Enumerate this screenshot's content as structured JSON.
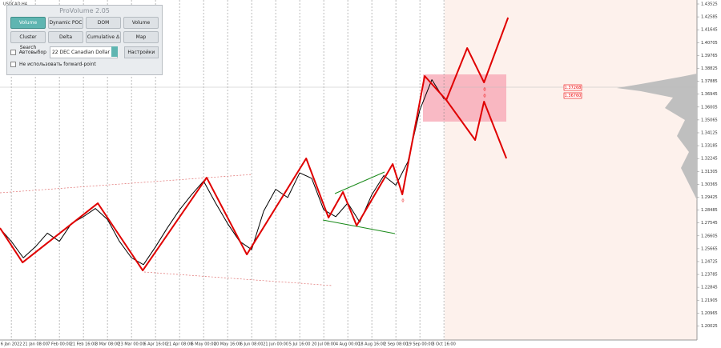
{
  "panel": {
    "title": "ProVolume 2.05",
    "buttons": [
      "Volume Profile",
      "Dynamic POC",
      "DOM",
      "Volume",
      "Cluster Search",
      "Delta",
      "Cumulative Δ",
      "Map"
    ],
    "auto_select": "Автовыбор",
    "instrument": "22 DEC Canadian Dollar",
    "settings": "Настройки",
    "forward_point": "Не использовать forward-point"
  },
  "chart_data": {
    "type": "line",
    "title": "USDCAD,H4",
    "categories": [
      "6 Jan 2022",
      "21 Jan 08:00",
      "7 Feb 00:00",
      "21 Feb 16:00",
      "8 Mar 08:00",
      "23 Mar 00:00",
      "6 Apr 16:00",
      "21 Apr 08:00",
      "6 May 00:00",
      "20 May 16:00",
      "6 Jun 08:00",
      "21 Jun 00:00",
      "5 Jul 16:00",
      "20 Jul 08:00",
      "4 Aug 00:00",
      "18 Aug 16:00",
      "2 Sep 08:00",
      "19 Sep 00:00",
      "3 Oct 16:00"
    ],
    "xlim": [
      -0.47,
      28.53
    ],
    "ylim": [
      1.19,
      1.43817
    ],
    "yticks": [
      1.43525,
      1.42585,
      1.41645,
      1.40705,
      1.39765,
      1.38825,
      1.37885,
      1.36945,
      1.36005,
      1.35065,
      1.34125,
      1.33185,
      1.32245,
      1.31305,
      1.30365,
      1.29425,
      1.28485,
      1.27545,
      1.26605,
      1.25665,
      1.24725,
      1.23785,
      1.22845,
      1.21905,
      1.20965,
      1.20025
    ],
    "grid": true,
    "series": [
      {
        "color": "#000000",
        "width": 1,
        "x": [
          -0.5,
          0,
          0.5,
          1,
          1.5,
          2,
          2.5,
          3,
          3.5,
          4,
          4.5,
          5,
          5.5,
          6,
          6.5,
          7,
          7.5,
          8,
          8.5,
          9,
          9.5,
          10,
          10.5,
          11,
          11.5,
          12,
          12.5,
          13,
          13.5,
          14,
          14.5,
          15,
          15.5,
          16,
          16.5,
          17,
          17.5,
          18
        ],
        "values": [
          1.272,
          1.262,
          1.25,
          1.258,
          1.268,
          1.262,
          1.275,
          1.28,
          1.286,
          1.278,
          1.262,
          1.25,
          1.245,
          1.258,
          1.272,
          1.285,
          1.296,
          1.306,
          1.29,
          1.275,
          1.262,
          1.256,
          1.284,
          1.3,
          1.294,
          1.312,
          1.308,
          1.285,
          1.28,
          1.29,
          1.276,
          1.296,
          1.31,
          1.303,
          1.32,
          1.358,
          1.38,
          1.366
        ]
      },
      {
        "color": "#e00000",
        "width": 2,
        "x": [
          -0.47,
          0.47,
          3.6,
          5.47,
          8.13,
          9.8,
          12.27,
          13.2,
          13.8,
          14.37,
          15.87,
          16.27,
          17.2,
          18.1
        ],
        "values": [
          1.27173,
          1.24662,
          1.28983,
          1.24078,
          1.30852,
          1.25246,
          1.32254,
          1.27932,
          1.29801,
          1.27348,
          1.31845,
          1.29626,
          1.38269,
          1.36517
        ]
      },
      {
        "color": "#e00000",
        "width": 2,
        "x": [
          18.1,
          18.97,
          19.67,
          20.67
        ],
        "values": [
          1.36517,
          1.40313,
          1.37802,
          1.42532
        ]
      },
      {
        "color": "#e00000",
        "width": 2,
        "x": [
          18.1,
          19.3,
          19.67,
          20.6
        ],
        "values": [
          1.36517,
          1.33597,
          1.364,
          1.32254
        ]
      }
    ],
    "price_labels": [
      "1.37268",
      "1.36760"
    ],
    "wave_labels": [
      "0",
      "0",
      "0"
    ]
  }
}
